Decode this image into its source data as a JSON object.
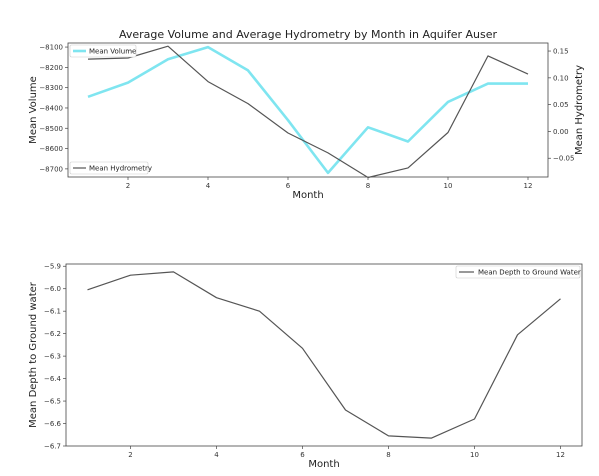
{
  "chart_data": [
    {
      "type": "line",
      "title": "Average Volume and Average Hydrometry by Month in Aquifer Auser",
      "xlabel": "Month",
      "ylabel": "Mean Volume",
      "y2label": "Mean Hydrometry",
      "x": [
        1,
        2,
        3,
        4,
        5,
        6,
        7,
        8,
        9,
        10,
        11,
        12
      ],
      "xticks": [
        2,
        4,
        6,
        8,
        10,
        12
      ],
      "xlim": [
        0.5,
        12.5
      ],
      "ylim": [
        -8740,
        -8080
      ],
      "yticks": [
        -8100,
        -8200,
        -8300,
        -8400,
        -8500,
        -8600,
        -8700
      ],
      "y2lim": [
        -0.085,
        0.165
      ],
      "y2ticks": [
        0.15,
        0.1,
        0.05,
        0.0,
        -0.05
      ],
      "y2ticklabels": [
        "0.15",
        "0.10",
        "0.05",
        "0.00",
        "-0.05"
      ],
      "series": [
        {
          "name": "Mean Volume",
          "axis": "left",
          "color": "#7fe5f0",
          "legend_position": "upper left",
          "values": [
            -8345,
            -8275,
            -8160,
            -8100,
            -8215,
            -8460,
            -8720,
            -8495,
            -8565,
            -8370,
            -8280,
            -8280
          ]
        },
        {
          "name": "Mean Hydrometry",
          "axis": "right",
          "color": "#555555",
          "legend_position": "lower left",
          "values": [
            0.135,
            0.137,
            0.159,
            0.093,
            0.052,
            -0.003,
            -0.04,
            -0.086,
            -0.068,
            -0.002,
            0.141,
            0.107
          ]
        }
      ]
    },
    {
      "type": "line",
      "title": "",
      "xlabel": "Month",
      "ylabel": "Mean Depth to Ground water",
      "x": [
        1,
        2,
        3,
        4,
        5,
        6,
        7,
        8,
        9,
        10,
        11,
        12
      ],
      "xticks": [
        2,
        4,
        6,
        8,
        10,
        12
      ],
      "xlim": [
        0.5,
        12.5
      ],
      "ylim": [
        -6.7,
        -5.89
      ],
      "yticks": [
        -5.9,
        -6.0,
        -6.1,
        -6.2,
        -6.3,
        -6.4,
        -6.5,
        -6.6,
        -6.7
      ],
      "yticklabels": [
        "-5.9",
        "-6.0",
        "-6.1",
        "-6.2",
        "-6.3",
        "-6.4",
        "-6.5",
        "-6.6",
        "-6.7"
      ],
      "series": [
        {
          "name": "Mean Depth to Ground Water",
          "color": "#555555",
          "legend_position": "upper right",
          "values": [
            -6.005,
            -5.94,
            -5.925,
            -6.04,
            -6.1,
            -6.265,
            -6.54,
            -6.655,
            -6.665,
            -6.58,
            -6.205,
            -6.045
          ]
        }
      ]
    }
  ]
}
